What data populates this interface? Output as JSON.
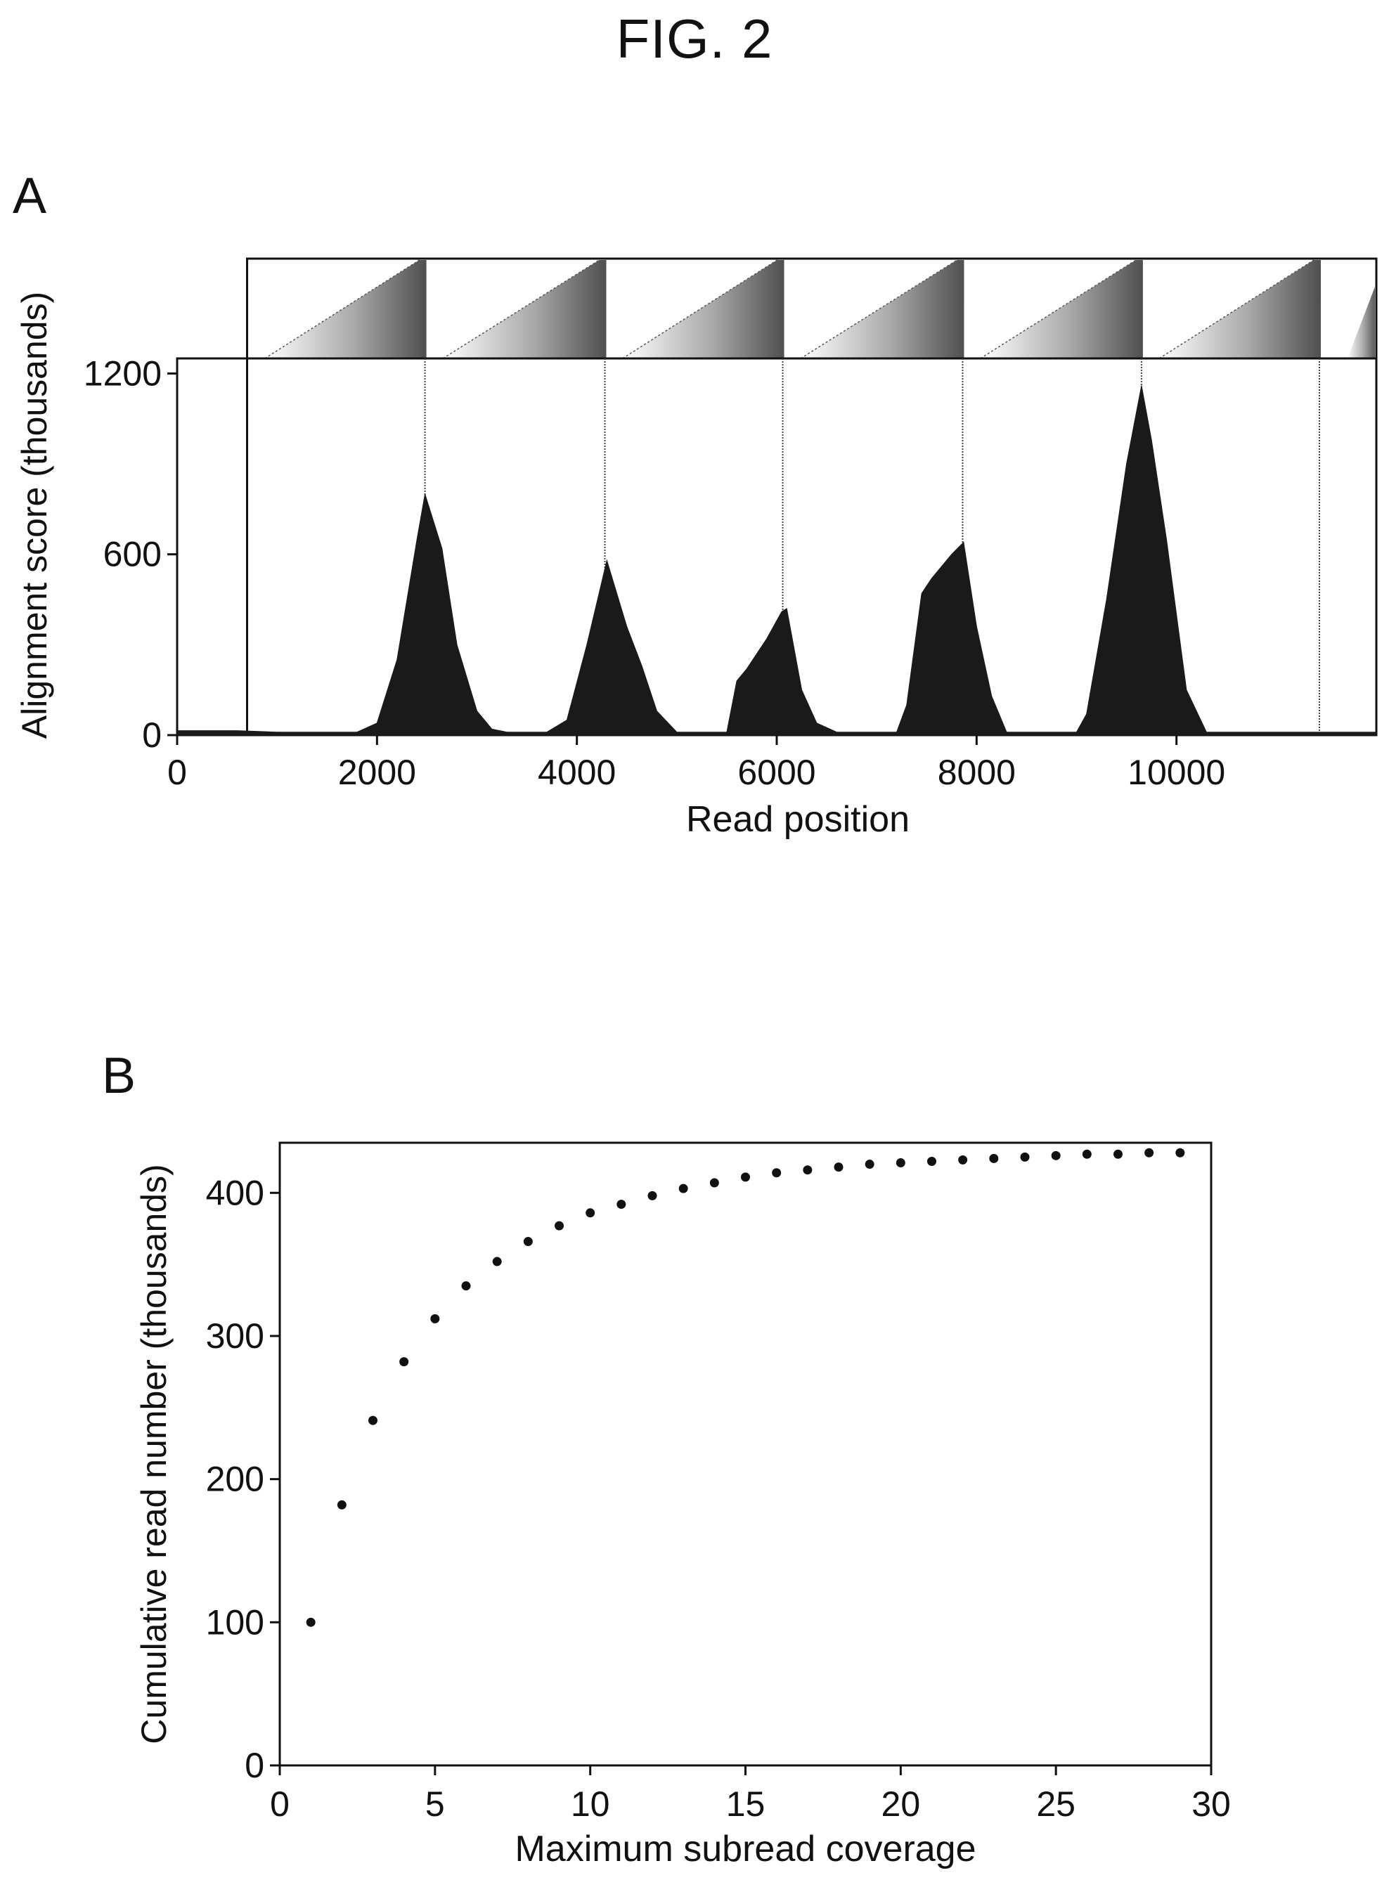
{
  "figure": {
    "title": "FIG. 2"
  },
  "panels": [
    {
      "label": "A"
    },
    {
      "label": "B"
    }
  ],
  "colors": {
    "ink": "#111111",
    "fill": "#1a1a1a",
    "background": "#ffffff"
  },
  "chart_data": [
    {
      "type": "area",
      "xlabel": "Read position",
      "ylabel": "Alignment score (thousands)",
      "xlim": [
        0,
        12000
      ],
      "ylim": [
        0,
        1250
      ],
      "xticks": [
        0,
        2000,
        4000,
        6000,
        8000,
        10000
      ],
      "yticks": [
        0,
        600,
        1200
      ],
      "grid": false,
      "series": [
        {
          "x": [
            0,
            600,
            1000,
            1800,
            2000,
            2200,
            2400,
            2480,
            2650,
            2800,
            3000,
            3150,
            3300,
            3700,
            3900,
            4100,
            4300,
            4500,
            4650,
            4800,
            5000,
            5500,
            5600,
            5700,
            5900,
            6050,
            6100,
            6250,
            6400,
            6600,
            7200,
            7300,
            7450,
            7550,
            7750,
            7870,
            8000,
            8150,
            8300,
            9000,
            9100,
            9300,
            9500,
            9650,
            9750,
            9900,
            10100,
            10300,
            10500,
            11500,
            12000
          ],
          "y": [
            15,
            15,
            10,
            10,
            40,
            250,
            650,
            800,
            620,
            300,
            80,
            20,
            10,
            10,
            50,
            300,
            580,
            360,
            230,
            80,
            10,
            10,
            180,
            220,
            320,
            410,
            420,
            150,
            40,
            10,
            10,
            100,
            470,
            520,
            600,
            640,
            360,
            130,
            10,
            10,
            70,
            450,
            900,
            1160,
            980,
            650,
            150,
            10,
            10,
            10,
            10
          ]
        }
      ],
      "segment_boundaries": [
        700,
        2480,
        4280,
        6060,
        7860,
        9650,
        11430
      ]
    },
    {
      "type": "scatter",
      "xlabel": "Maximum subread coverage",
      "ylabel": "Cumulative read number (thousands)",
      "xlim": [
        0,
        30
      ],
      "ylim": [
        0,
        435
      ],
      "xticks": [
        0,
        5,
        10,
        15,
        20,
        25,
        30
      ],
      "yticks": [
        0,
        100,
        200,
        300,
        400
      ],
      "grid": false,
      "x": [
        1,
        2,
        3,
        4,
        5,
        6,
        7,
        8,
        9,
        10,
        11,
        12,
        13,
        14,
        15,
        16,
        17,
        18,
        19,
        20,
        21,
        22,
        23,
        24,
        25,
        26,
        27,
        28,
        29
      ],
      "y": [
        100,
        182,
        241,
        282,
        312,
        335,
        352,
        366,
        377,
        386,
        392,
        398,
        403,
        407,
        411,
        414,
        416,
        418,
        420,
        421,
        422,
        423,
        424,
        425,
        426,
        427,
        427,
        428,
        428
      ]
    }
  ]
}
